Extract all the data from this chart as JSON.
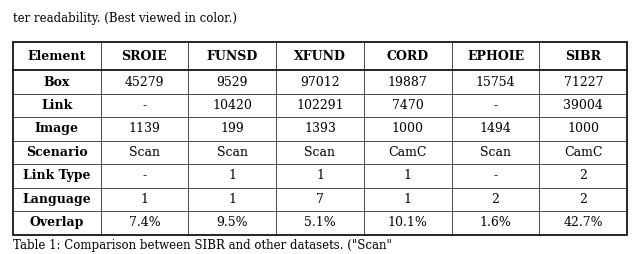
{
  "caption_top": "ter readability. (Best viewed in color.)",
  "caption_bottom": "Table 1: Comparison between SIBR and other datasets. (\"Scan\"",
  "headers": [
    "Element",
    "SROIE",
    "FUNSD",
    "XFUND",
    "CORD",
    "EPHOIE",
    "SIBR"
  ],
  "rows": [
    [
      "Box",
      "45279",
      "9529",
      "97012",
      "19887",
      "15754",
      "71227"
    ],
    [
      "Link",
      "-",
      "10420",
      "102291",
      "7470",
      "-",
      "39004"
    ],
    [
      "Image",
      "1139",
      "199",
      "1393",
      "1000",
      "1494",
      "1000"
    ],
    [
      "Scenario",
      "Scan",
      "Scan",
      "Scan",
      "CamC",
      "Scan",
      "CamC"
    ],
    [
      "Link Type",
      "-",
      "1",
      "1",
      "1",
      "-",
      "2"
    ],
    [
      "Language",
      "1",
      "1",
      "7",
      "1",
      "2",
      "2"
    ],
    [
      "Overlap",
      "7.4%",
      "9.5%",
      "5.1%",
      "10.1%",
      "1.6%",
      "42.7%"
    ]
  ],
  "background_color": "#ffffff",
  "header_fontsize": 9,
  "cell_fontsize": 9,
  "caption_fontsize": 8.5
}
